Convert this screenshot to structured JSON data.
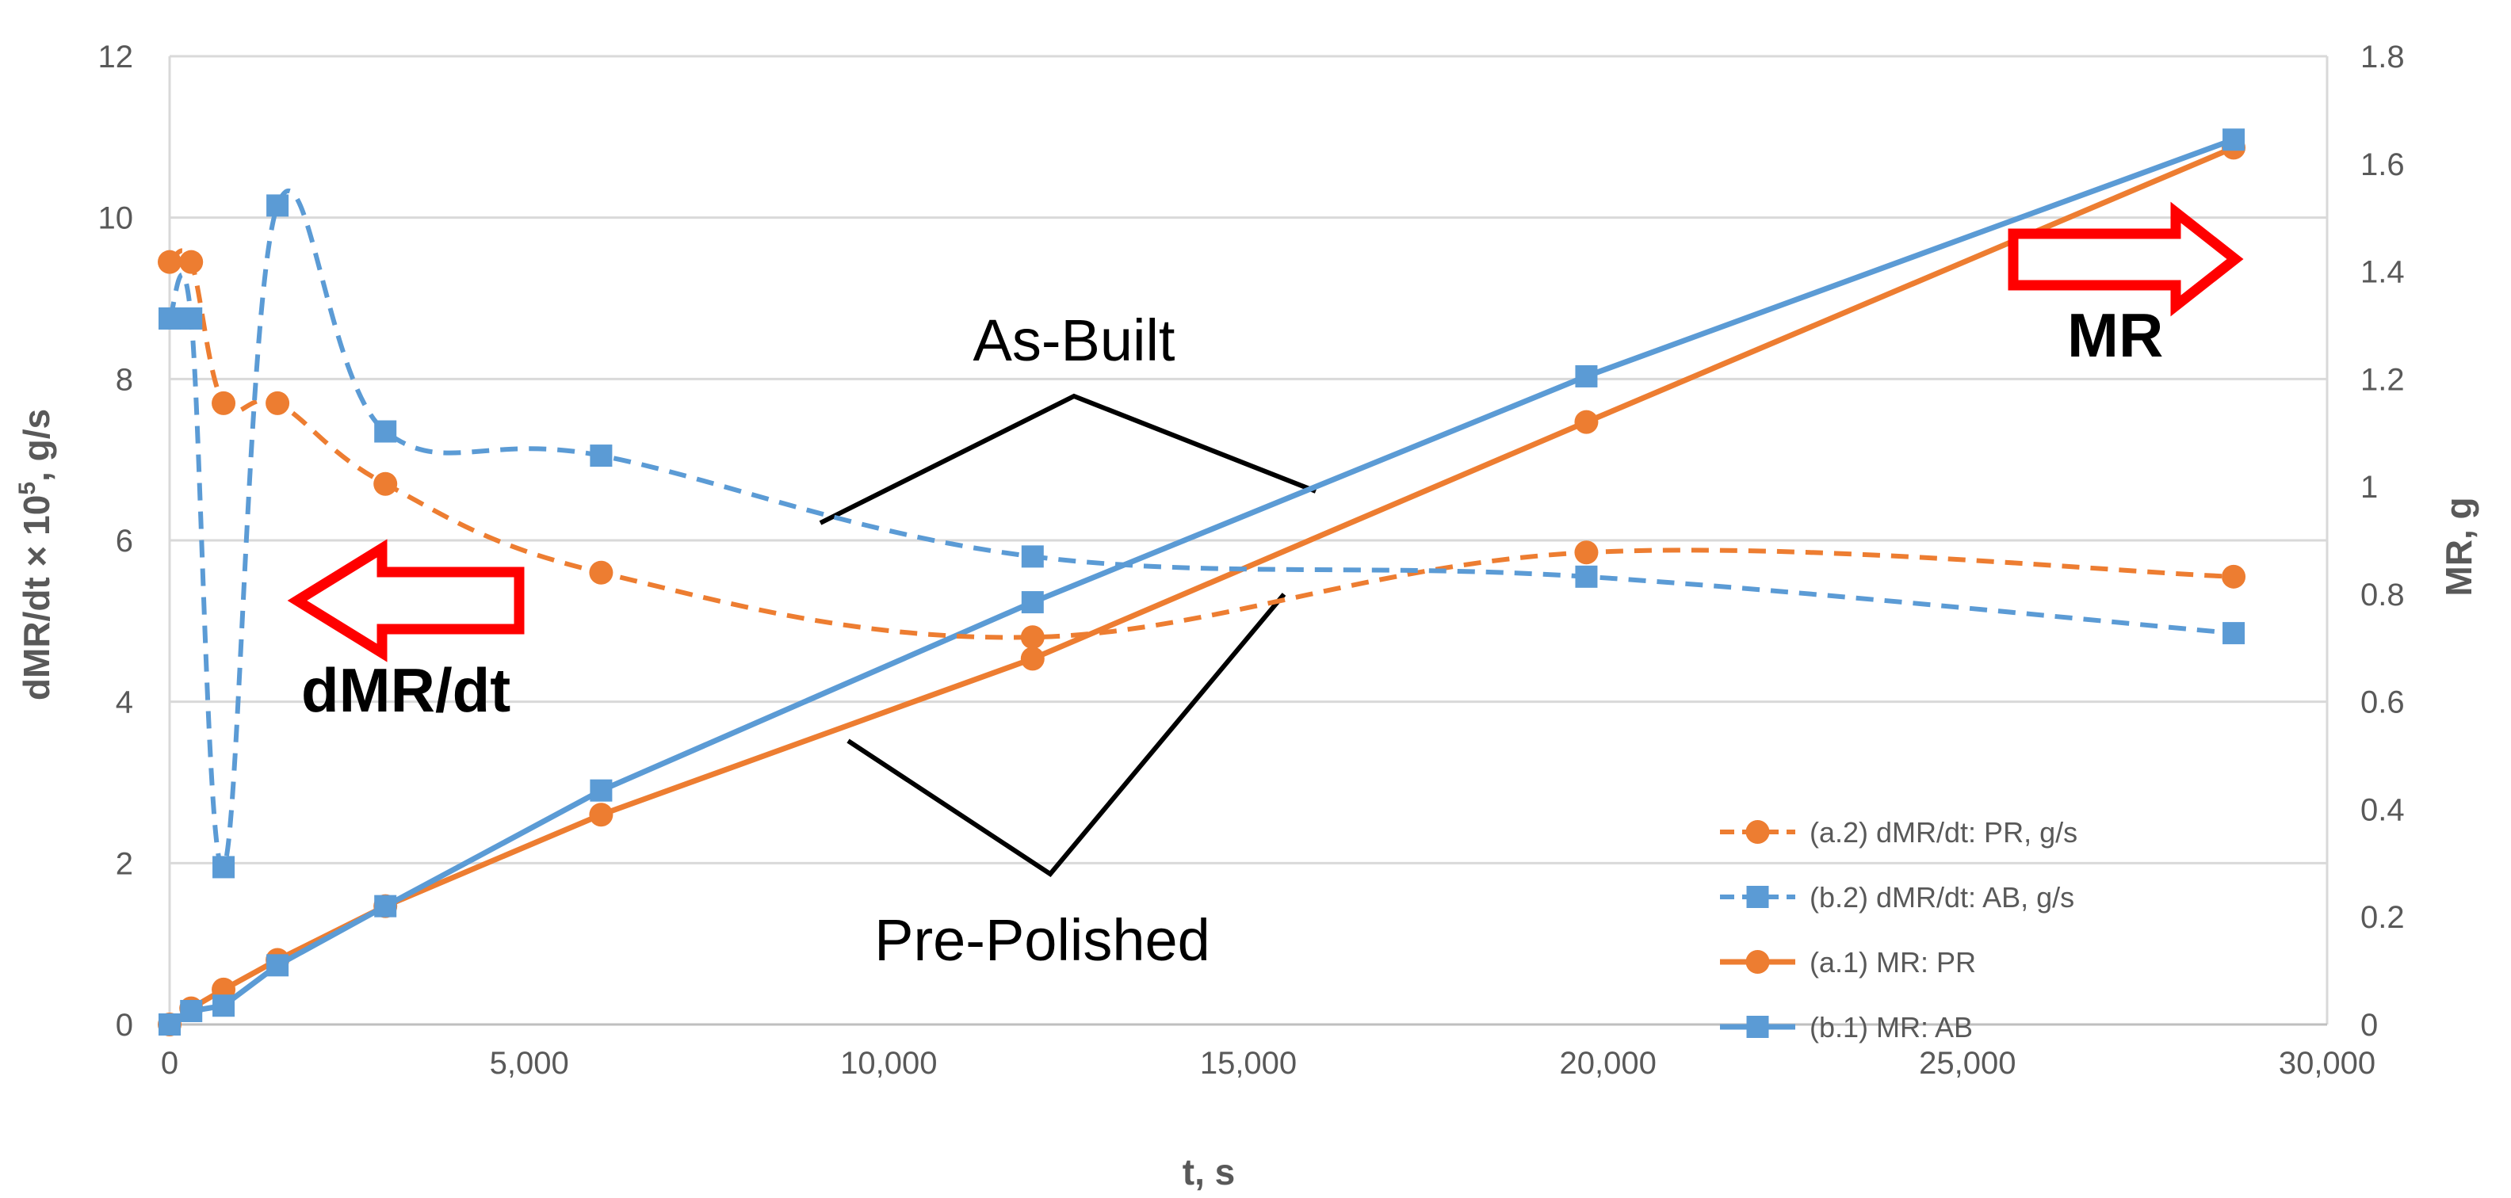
{
  "chart_data": {
    "type": "line",
    "xlabel": "t, s",
    "ylabel_left": "dMR/dt × 10⁵, g/s",
    "ylabel_left_parts": {
      "pre": "dMR/dt × 10",
      "sup": "5",
      "post": ", g/s"
    },
    "ylabel_right": "MR, g",
    "xlim": [
      0,
      30000
    ],
    "ylim_left": [
      0,
      12
    ],
    "ylim_right": [
      0,
      1.8
    ],
    "x_ticks": [
      0,
      5000,
      10000,
      15000,
      20000,
      25000,
      30000
    ],
    "x_tick_labels": [
      "0",
      "5,000",
      "10,000",
      "15,000",
      "20,000",
      "25,000",
      "30,000"
    ],
    "y_left_ticks": [
      0,
      2,
      4,
      6,
      8,
      10,
      12
    ],
    "y_left_tick_labels": [
      "0",
      "2",
      "4",
      "6",
      "8",
      "10",
      "12"
    ],
    "y_right_ticks": [
      0,
      0.2,
      0.4,
      0.6,
      0.8,
      1,
      1.2,
      1.4,
      1.6,
      1.8
    ],
    "y_right_tick_labels": [
      "0",
      "0.2",
      "0.4",
      "0.6",
      "0.8",
      "1",
      "1.2",
      "1.4",
      "1.6",
      "1.8"
    ],
    "grid": "horizontal",
    "legend_position": "bottom-right",
    "series": [
      {
        "name": "(a.2) dMR/dt: PR, g/s",
        "axis": "left",
        "style": "dashed",
        "marker": "circle",
        "color": "#ED7D31",
        "x": [
          0,
          300,
          750,
          1500,
          3000,
          6000,
          12000,
          19700,
          28700
        ],
        "y": [
          9.45,
          9.45,
          7.7,
          7.7,
          6.7,
          5.6,
          4.8,
          5.85,
          5.55
        ]
      },
      {
        "name": "(b.2) dMR/dt: AB, g/s",
        "axis": "left",
        "style": "dashed",
        "marker": "square",
        "color": "#5B9BD5",
        "x": [
          0,
          300,
          750,
          1500,
          3000,
          6000,
          12000,
          19700,
          28700
        ],
        "y": [
          8.75,
          8.75,
          1.95,
          10.15,
          7.35,
          7.05,
          5.8,
          5.55,
          4.85
        ]
      },
      {
        "name": "(a.1) MR: PR",
        "axis": "right",
        "style": "solid",
        "marker": "circle",
        "color": "#ED7D31",
        "x": [
          0,
          300,
          750,
          1500,
          3000,
          6000,
          12000,
          19700,
          28700
        ],
        "y": [
          0,
          0.03,
          0.065,
          0.12,
          0.22,
          0.39,
          0.68,
          1.12,
          1.63
        ]
      },
      {
        "name": "(b.1) MR: AB",
        "axis": "right",
        "style": "solid",
        "marker": "square",
        "color": "#5B9BD5",
        "x": [
          0,
          300,
          750,
          1500,
          3000,
          6000,
          12000,
          19700,
          28700
        ],
        "y": [
          0,
          0.025,
          0.035,
          0.11,
          0.22,
          0.435,
          0.785,
          1.205,
          1.645
        ]
      }
    ],
    "annotations": {
      "as_built": "As-Built",
      "pre_polished": "Pre-Polished",
      "arrow_left_label": "dMR/dt",
      "arrow_right_label": "MR"
    },
    "colors": {
      "orange": "#ED7D31",
      "blue": "#5B9BD5",
      "arrow_red": "#FF0000",
      "grid": "#D9D9D9",
      "text": "#595959"
    }
  }
}
